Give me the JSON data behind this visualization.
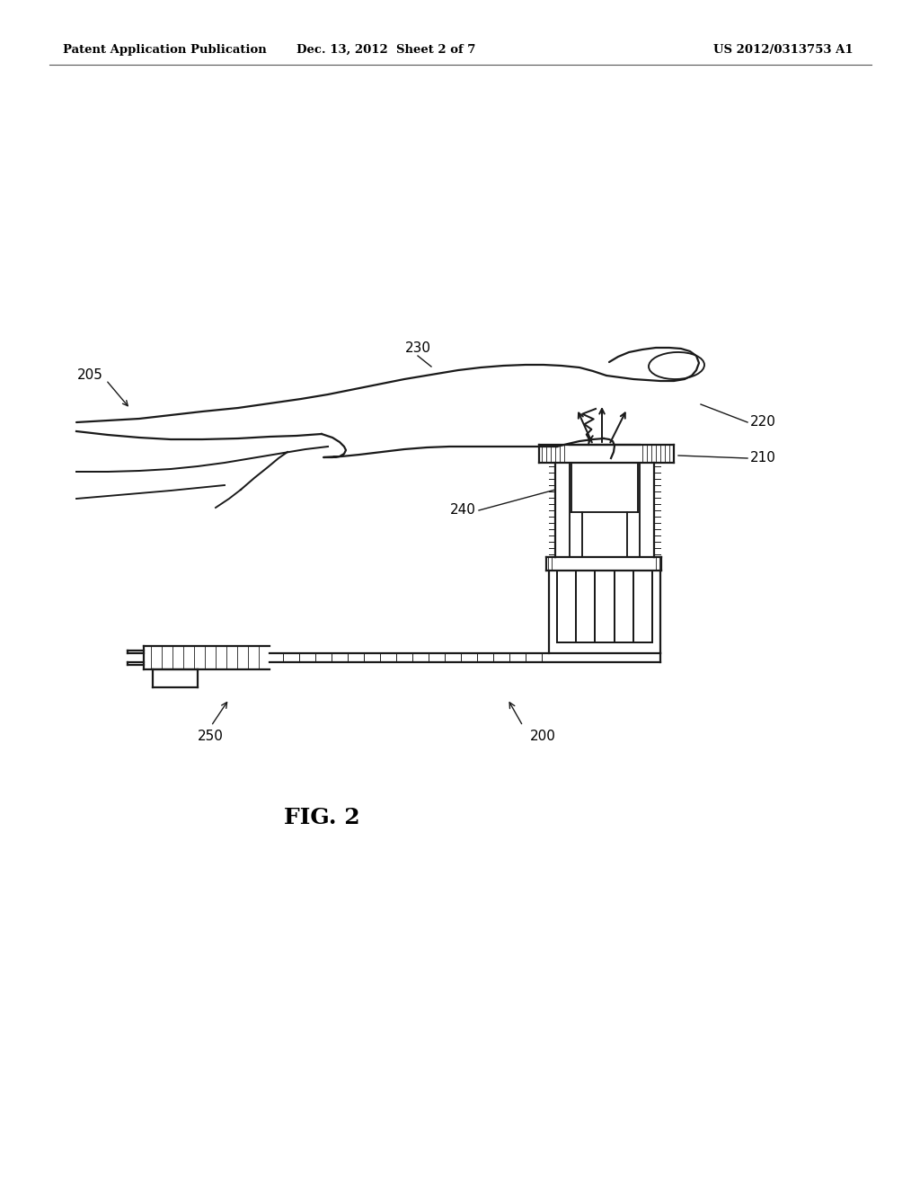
{
  "background_color": "#ffffff",
  "header_left": "Patent Application Publication",
  "header_center": "Dec. 13, 2012  Sheet 2 of 7",
  "header_right": "US 2012/0313753 A1",
  "fig_label": "FIG. 2",
  "line_color": "#1a1a1a",
  "lw": 1.6
}
